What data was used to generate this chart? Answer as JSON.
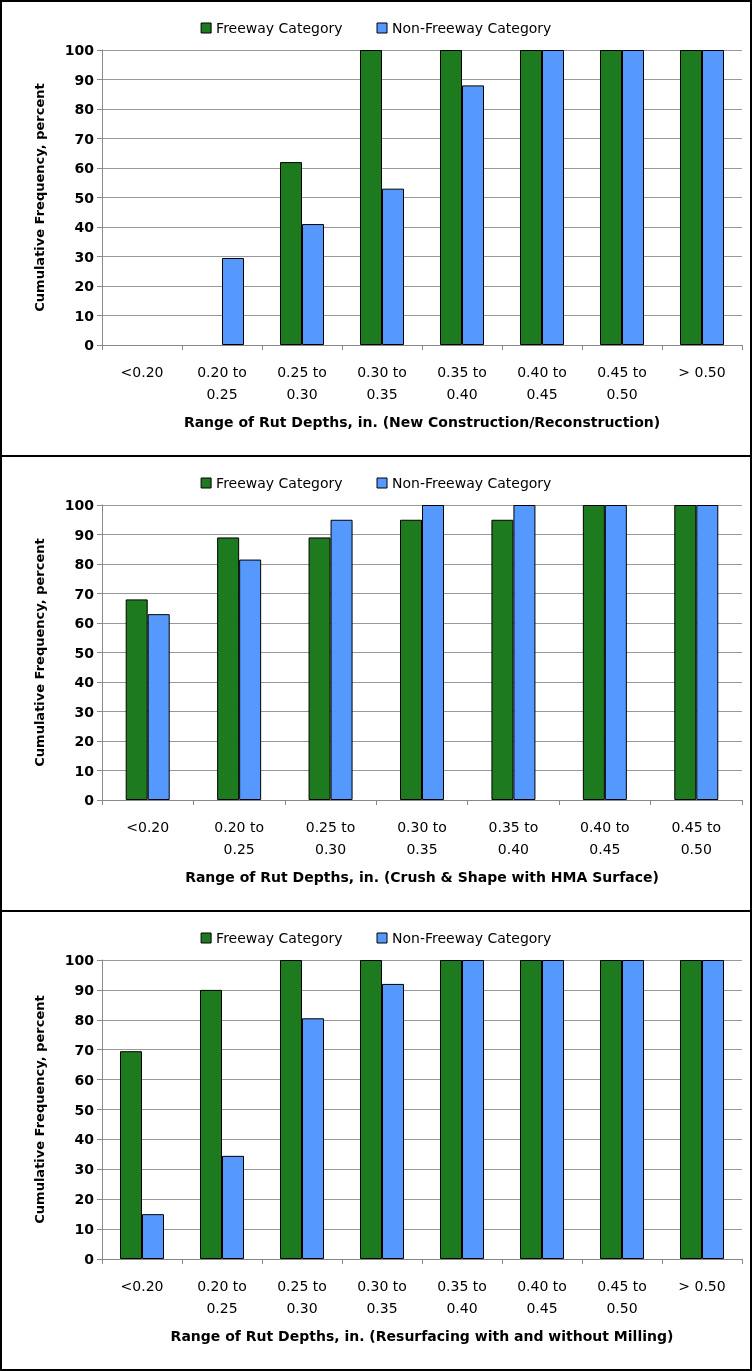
{
  "chart_data": [
    {
      "type": "bar",
      "xlabel": "Range of Rut Depths, in. (New Construction/Reconstruction)",
      "ylabel": "Cumulative Frequency, percent",
      "categories": [
        "<0.20",
        "0.20 to\n0.25",
        "0.25 to\n0.30",
        "0.30 to\n0.35",
        "0.35 to\n0.40",
        "0.40 to\n0.45",
        "0.45 to\n0.50",
        "> 0.50"
      ],
      "series": [
        {
          "name": "Freeway Category",
          "color": "#1e7a1e",
          "values": [
            0,
            0,
            62,
            100,
            100,
            100,
            100,
            100
          ]
        },
        {
          "name": "Non-Freeway Category",
          "color": "#5599ff",
          "values": [
            0,
            29.5,
            41,
            53,
            88,
            100,
            100,
            100
          ]
        }
      ],
      "ylim": [
        0,
        100
      ],
      "yticks": [
        0,
        10,
        20,
        30,
        40,
        50,
        60,
        70,
        80,
        90,
        100
      ],
      "grid": "y",
      "legend": "top"
    },
    {
      "type": "bar",
      "xlabel": "Range of Rut Depths, in. (Crush & Shape with HMA Surface)",
      "ylabel": "Cumulative Frequency, percent",
      "categories": [
        "<0.20",
        "0.20 to\n0.25",
        "0.25 to\n0.30",
        "0.30 to\n0.35",
        "0.35 to\n0.40",
        "0.40 to\n0.45",
        "0.45 to\n0.50"
      ],
      "series": [
        {
          "name": "Freeway Category",
          "color": "#1e7a1e",
          "values": [
            68,
            89,
            89,
            95,
            95,
            100,
            100
          ]
        },
        {
          "name": "Non-Freeway Category",
          "color": "#5599ff",
          "values": [
            63,
            81.5,
            95,
            100,
            100,
            100,
            100
          ]
        }
      ],
      "ylim": [
        0,
        100
      ],
      "yticks": [
        0,
        10,
        20,
        30,
        40,
        50,
        60,
        70,
        80,
        90,
        100
      ],
      "grid": "y",
      "legend": "top"
    },
    {
      "type": "bar",
      "xlabel": "Range of Rut Depths, in. (Resurfacing with and without Milling)",
      "ylabel": "Cumulative Frequency, percent",
      "categories": [
        "<0.20",
        "0.20 to\n0.25",
        "0.25 to\n0.30",
        "0.30 to\n0.35",
        "0.35 to\n0.40",
        "0.40 to\n0.45",
        "0.45 to\n0.50",
        "> 0.50"
      ],
      "series": [
        {
          "name": "Freeway Category",
          "color": "#1e7a1e",
          "values": [
            69.5,
            90,
            100,
            100,
            100,
            100,
            100,
            100
          ]
        },
        {
          "name": "Non-Freeway Category",
          "color": "#5599ff",
          "values": [
            15,
            34.5,
            80.5,
            92,
            100,
            100,
            100,
            100
          ]
        }
      ],
      "ylim": [
        0,
        100
      ],
      "yticks": [
        0,
        10,
        20,
        30,
        40,
        50,
        60,
        70,
        80,
        90,
        100
      ],
      "grid": "y",
      "legend": "top"
    }
  ]
}
